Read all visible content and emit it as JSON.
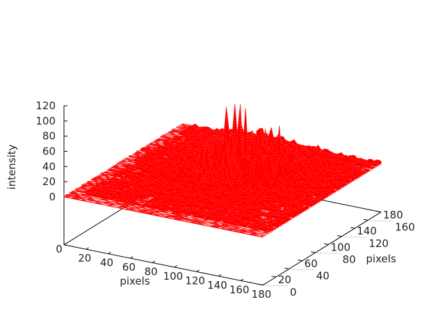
{
  "chart_data": {
    "type": "surface",
    "title": "",
    "xlabel": "pixels",
    "ylabel": "pixels",
    "zlabel": "intensity",
    "xlim": [
      0,
      180
    ],
    "ylim": [
      0,
      180
    ],
    "zlim": [
      0,
      120
    ],
    "xticks": [
      "0",
      "20",
      "40",
      "60",
      "80",
      "100",
      "120",
      "140",
      "160",
      "180"
    ],
    "yticks": [
      "0",
      "20",
      "40",
      "60",
      "80",
      "100",
      "120",
      "140",
      "160",
      "180"
    ],
    "zticks": [
      "0",
      "20",
      "40",
      "60",
      "80",
      "100",
      "120"
    ],
    "surface_color": "#ff0000",
    "peak_intensity_approx": 125,
    "grid": false,
    "legend": "none"
  }
}
